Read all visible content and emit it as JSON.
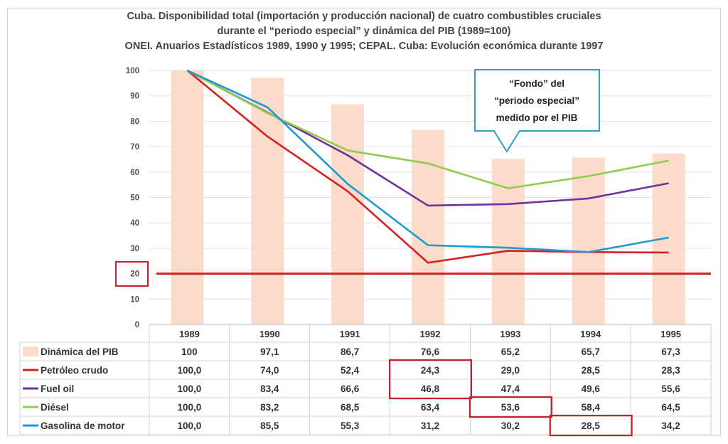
{
  "chart_data": {
    "type": "bar+line",
    "title": [
      "Cuba. Disponibilidad total (importación y producción nacional) de cuatro combustibles cruciales",
      "durante el “periodo especial” y dinámica del PIB (1989=100)",
      "ONEI. Anuarios Estadísticos 1989, 1990 y 1995; CEPAL. Cuba: Evolución económica durante 1997"
    ],
    "categories": [
      "1989",
      "1990",
      "1991",
      "1992",
      "1993",
      "1994",
      "1995"
    ],
    "ylim": [
      0,
      100
    ],
    "yticks": [
      0,
      10,
      20,
      30,
      40,
      50,
      60,
      70,
      80,
      90,
      100
    ],
    "grid": true,
    "legend": "data-table",
    "bar_series": {
      "name": "Dinámica del  PIB",
      "color": "#fbdccb",
      "values": [
        100,
        97.1,
        86.7,
        76.6,
        65.2,
        65.7,
        67.3
      ],
      "labels": [
        "100",
        "97,1",
        "86,7",
        "76,6",
        "65,2",
        "65,7",
        "67,3"
      ]
    },
    "line_series": [
      {
        "name": "Petróleo crudo",
        "color": "#d62020",
        "values": [
          100.0,
          74.0,
          52.4,
          24.3,
          29.0,
          28.5,
          28.3
        ],
        "labels": [
          "100,0",
          "74,0",
          "52,4",
          "24,3",
          "29,0",
          "28,5",
          "28,3"
        ]
      },
      {
        "name": "Fuel oil",
        "color": "#7030a0",
        "values": [
          100.0,
          83.4,
          66.6,
          46.8,
          47.4,
          49.6,
          55.6
        ],
        "labels": [
          "100,0",
          "83,4",
          "66,6",
          "46,8",
          "47,4",
          "49,6",
          "55,6"
        ]
      },
      {
        "name": "Diésel",
        "color": "#8fce4a",
        "values": [
          100.0,
          83.2,
          68.5,
          63.4,
          53.6,
          58.4,
          64.5
        ],
        "labels": [
          "100,0",
          "83,2",
          "68,5",
          "63,4",
          "53,6",
          "58,4",
          "64,5"
        ]
      },
      {
        "name": "Gasolina de motor",
        "color": "#1e9ad0",
        "values": [
          100.0,
          85.5,
          55.3,
          31.2,
          30.2,
          28.5,
          34.2
        ],
        "labels": [
          "100,0",
          "85,5",
          "55,3",
          "31,2",
          "30,2",
          "28,5",
          "34,2"
        ]
      }
    ],
    "reference_line": {
      "value": 20,
      "color": "#d62020",
      "highlighted_tick": "20"
    },
    "highlighted_cells": [
      {
        "series": "Petróleo crudo",
        "category": "1992"
      },
      {
        "series": "Fuel oil",
        "category": "1992"
      },
      {
        "series": "Diésel",
        "category": "1993"
      },
      {
        "series": "Gasolina de motor",
        "category": "1994"
      }
    ],
    "annotation": {
      "lines": [
        "“Fondo” del",
        "“periodo especial”",
        "medido por el PIB"
      ],
      "points_to_category": "1993",
      "border_color": "#2aa0c8"
    }
  }
}
